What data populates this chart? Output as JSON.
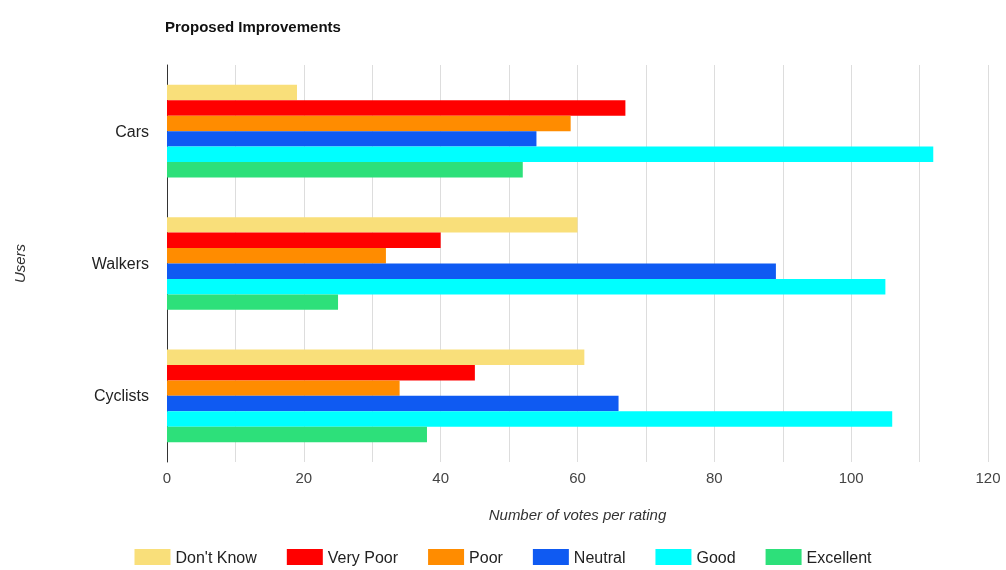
{
  "chart_data": {
    "type": "bar",
    "orientation": "horizontal",
    "title": "Proposed Improvements",
    "xlabel": "Number of votes per rating",
    "ylabel": "Users",
    "categories": [
      "Cars",
      "Walkers",
      "Cyclists"
    ],
    "series": [
      {
        "name": "Don't Know",
        "color": "#f9df7a",
        "values": [
          19,
          60,
          61
        ]
      },
      {
        "name": "Very Poor",
        "color": "#ff0000",
        "values": [
          67,
          40,
          45
        ]
      },
      {
        "name": "Poor",
        "color": "#ff8c00",
        "values": [
          59,
          32,
          34
        ]
      },
      {
        "name": "Neutral",
        "color": "#0f5af2",
        "values": [
          54,
          89,
          66
        ]
      },
      {
        "name": "Good",
        "color": "#00ffff",
        "values": [
          112,
          105,
          106
        ]
      },
      {
        "name": "Excellent",
        "color": "#2de07a",
        "values": [
          52,
          25,
          38
        ]
      }
    ],
    "xlim": [
      0,
      120
    ],
    "xticks": [
      0,
      {
        "value": 10,
        "label": null
      },
      20,
      {
        "value": 30,
        "label": null
      },
      40,
      {
        "value": 50,
        "label": null
      },
      60,
      {
        "value": 70,
        "label": null
      },
      80,
      {
        "value": 90,
        "label": null
      },
      100,
      {
        "value": 110,
        "label": null
      },
      120
    ],
    "grid": "x",
    "legend": "bottom"
  }
}
